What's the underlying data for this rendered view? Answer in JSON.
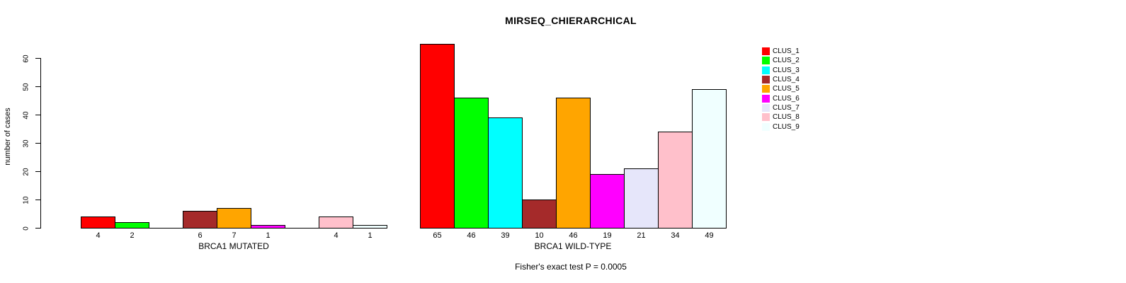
{
  "chart_data": {
    "type": "bar",
    "title": "MIRSEQ_CHIERARCHICAL",
    "ylabel": "number of cases",
    "ylim": [
      0,
      65
    ],
    "yticks": [
      0,
      10,
      20,
      30,
      40,
      50,
      60
    ],
    "grid": false,
    "legend_position": "topright",
    "bar_border_color": "#000000",
    "clusters": [
      {
        "name": "CLUS_1",
        "color": "#FF0000"
      },
      {
        "name": "CLUS_2",
        "color": "#00FF00"
      },
      {
        "name": "CLUS_3",
        "color": "#00FFFF"
      },
      {
        "name": "CLUS_4",
        "color": "#A52A2A"
      },
      {
        "name": "CLUS_5",
        "color": "#FFA500"
      },
      {
        "name": "CLUS_6",
        "color": "#FF00FF"
      },
      {
        "name": "CLUS_7",
        "color": "#E6E6FA"
      },
      {
        "name": "CLUS_8",
        "color": "#FFC0CB"
      },
      {
        "name": "CLUS_9",
        "color": "#F0FFFF"
      }
    ],
    "categories": [
      "CLUS_1",
      "CLUS_2",
      "CLUS_3",
      "CLUS_4",
      "CLUS_5",
      "CLUS_6",
      "CLUS_7",
      "CLUS_8",
      "CLUS_9"
    ],
    "series": [
      {
        "name": "BRCA1 MUTATED",
        "values": [
          4,
          2,
          0,
          6,
          7,
          1,
          0,
          4,
          1
        ]
      },
      {
        "name": "BRCA1 WILD-TYPE",
        "values": [
          65,
          46,
          39,
          10,
          46,
          19,
          21,
          34,
          49
        ]
      }
    ],
    "footnote": "Fisher's exact test P = 0.0005"
  }
}
